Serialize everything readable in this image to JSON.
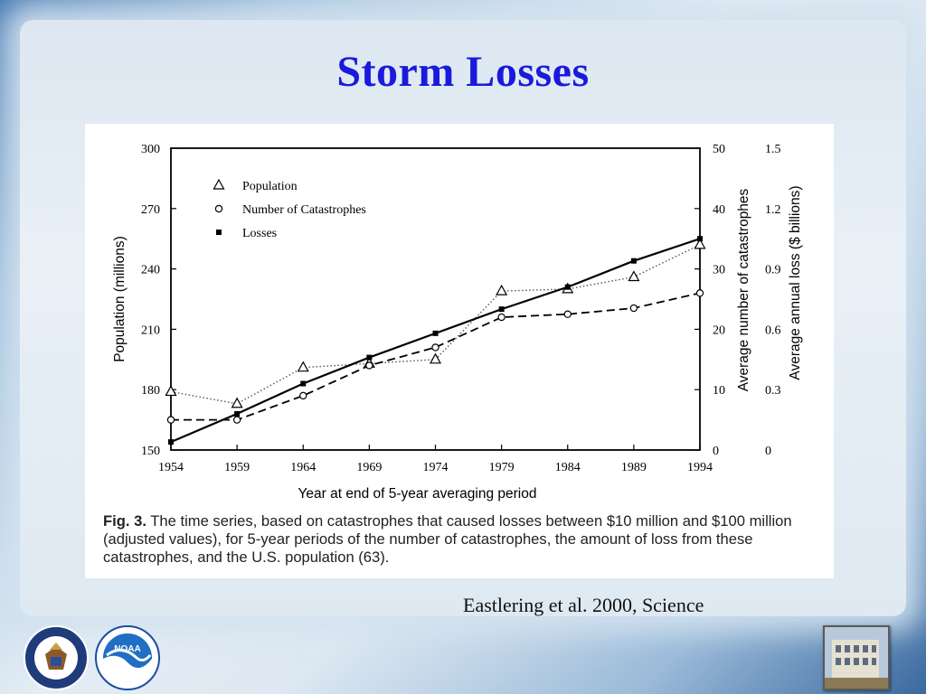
{
  "slide": {
    "title": "Storm Losses",
    "citation": "Eastlering et al. 2000, Science"
  },
  "caption": {
    "fig_label": "Fig. 3.",
    "text": "The time series, based on catastrophes that caused losses between $10 million and $100 million (adjusted values), for 5-year periods of the number of catastrophes, the amount of loss from these catastrophes, and the U.S. population (63)."
  },
  "logos": {
    "doc_text": "DEPARTMENT OF COMMERCE · UNITED STATES OF AMERICA",
    "noaa_text": "NOAA"
  },
  "chart_data": {
    "type": "line",
    "x": [
      1954,
      1959,
      1964,
      1969,
      1974,
      1979,
      1984,
      1989,
      1994
    ],
    "xlabel": "Year at end of 5-year averaging period",
    "ylabel_left": "Population (millions)",
    "ylabel_right1": "Average number of catastrophes",
    "ylabel_right2": "Average annual loss ($ billions)",
    "xlim": [
      1954,
      1994
    ],
    "ylim_left": [
      150,
      300
    ],
    "ylim_right1": [
      0,
      50
    ],
    "ylim_right2": [
      0,
      1.5
    ],
    "yticks_left": [
      150,
      180,
      210,
      240,
      270,
      300
    ],
    "yticks_right1": [
      0,
      10,
      20,
      30,
      40,
      50
    ],
    "yticks_right2": [
      "0",
      "0.3",
      "0.6",
      "0.9",
      "1.2",
      "1.5"
    ],
    "legend_position": "top-left",
    "grid": false,
    "series": [
      {
        "name": "Population",
        "axis": "left",
        "marker": "triangle-open",
        "line": "dotted",
        "values": [
          179,
          173,
          191,
          193,
          195,
          229,
          230,
          236,
          252
        ]
      },
      {
        "name": "Number of Catastrophes",
        "axis": "right1",
        "marker": "circle-open",
        "line": "dashed",
        "values": [
          5,
          5,
          9,
          14,
          17,
          22,
          22.5,
          23.5,
          26
        ]
      },
      {
        "name": "Losses",
        "axis": "right2",
        "marker": "square-filled",
        "line": "solid",
        "values": [
          0.04,
          0.18,
          0.33,
          0.46,
          0.58,
          0.7,
          0.81,
          0.94,
          1.05
        ]
      }
    ]
  }
}
